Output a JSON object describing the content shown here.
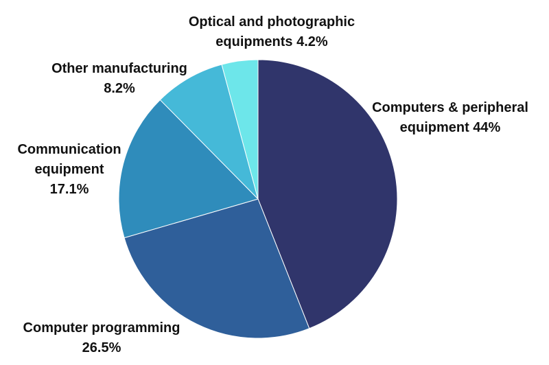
{
  "chart_data": {
    "type": "pie",
    "start_angle_deg": 0,
    "direction": "clockwise",
    "slices": [
      {
        "label": "Computers & peripheral equipment",
        "value": 44.0,
        "color": "#30356b",
        "label_lines": [
          "Computers & peripheral",
          "equipment 44%"
        ]
      },
      {
        "label": "Computer programming",
        "value": 26.5,
        "color": "#2f5f9a",
        "label_lines": [
          "Computer programming",
          "26.5%"
        ]
      },
      {
        "label": "Communication equipment",
        "value": 17.1,
        "color": "#2f8cbb",
        "label_lines": [
          "Communication",
          "equipment",
          "17.1%"
        ]
      },
      {
        "label": "Other manufacturing",
        "value": 8.2,
        "color": "#45b9d8",
        "label_lines": [
          "Other manufacturing",
          "8.2%"
        ]
      },
      {
        "label": "Optical and photographic equipments",
        "value": 4.2,
        "color": "#6de6ea",
        "label_lines": [
          "Optical and photographic",
          "equipments 4.2%"
        ]
      }
    ]
  }
}
